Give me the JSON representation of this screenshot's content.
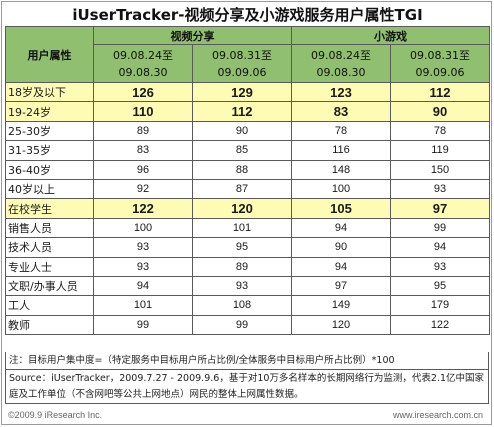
{
  "title": "iUserTracker-视频分享及小游戏服务用户属性TGI",
  "table": {
    "attr_header": "用户属性",
    "groups": [
      "视频分享",
      "小游戏"
    ],
    "periods": [
      "09.08.24至\n09.08.30",
      "09.08.31至\n09.09.06",
      "09.08.24至\n09.08.30",
      "09.08.31至\n09.09.06"
    ],
    "rows": [
      {
        "label": "18岁及以下",
        "values": [
          "126",
          "129",
          "123",
          "112"
        ],
        "highlight": true
      },
      {
        "label": "19-24岁",
        "values": [
          "110",
          "112",
          "83",
          "90"
        ],
        "highlight": true
      },
      {
        "label": "25-30岁",
        "values": [
          "89",
          "90",
          "78",
          "78"
        ],
        "highlight": false
      },
      {
        "label": "31-35岁",
        "values": [
          "83",
          "85",
          "116",
          "119"
        ],
        "highlight": false
      },
      {
        "label": "36-40岁",
        "values": [
          "96",
          "88",
          "148",
          "150"
        ],
        "highlight": false
      },
      {
        "label": "40岁以上",
        "values": [
          "92",
          "87",
          "100",
          "93"
        ],
        "highlight": false
      },
      {
        "label": "在校学生",
        "values": [
          "122",
          "120",
          "105",
          "97"
        ],
        "highlight": true
      },
      {
        "label": "销售人员",
        "values": [
          "100",
          "101",
          "94",
          "99"
        ],
        "highlight": false
      },
      {
        "label": "技术人员",
        "values": [
          "93",
          "95",
          "90",
          "94"
        ],
        "highlight": false
      },
      {
        "label": "专业人士",
        "values": [
          "93",
          "89",
          "94",
          "93"
        ],
        "highlight": false
      },
      {
        "label": "文职/办事人员",
        "values": [
          "94",
          "93",
          "97",
          "95"
        ],
        "highlight": false
      },
      {
        "label": "工人",
        "values": [
          "101",
          "108",
          "149",
          "179"
        ],
        "highlight": false
      },
      {
        "label": "教师",
        "values": [
          "99",
          "99",
          "120",
          "122"
        ],
        "highlight": false
      }
    ]
  },
  "notes": {
    "tgi": "注：目标用户集中度=（特定服务中目标用户所占比例/全体服务中目标用户所占比例）*100",
    "source": "Source：iUserTracker，2009.7.27 - 2009.9.6，基于对10万多名样本的长期网络行为监测，代表2.1亿中国家庭及工作单位（不含网吧等公共上网地点）网民的整体上网属性数据。"
  },
  "footer": {
    "copyright": "©2009.9 iResearch Inc.",
    "website": "www.iresearch.com.cn"
  }
}
